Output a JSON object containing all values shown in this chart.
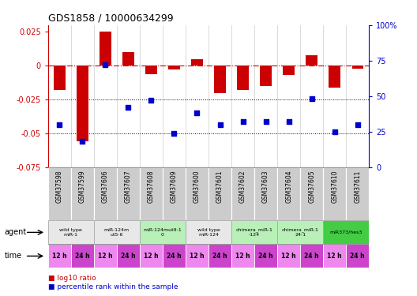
{
  "title": "GDS1858 / 10000634299",
  "samples": [
    "GSM37598",
    "GSM37599",
    "GSM37606",
    "GSM37607",
    "GSM37608",
    "GSM37609",
    "GSM37600",
    "GSM37601",
    "GSM37602",
    "GSM37603",
    "GSM37604",
    "GSM37605",
    "GSM37610",
    "GSM37611"
  ],
  "log10_ratio": [
    -0.018,
    -0.056,
    0.025,
    0.01,
    -0.006,
    -0.003,
    0.005,
    -0.02,
    -0.018,
    -0.015,
    -0.007,
    0.008,
    -0.016,
    -0.002
  ],
  "percentile_rank": [
    30,
    18,
    72,
    42,
    47,
    24,
    38,
    30,
    32,
    32,
    32,
    48,
    25,
    30
  ],
  "ylim_left": [
    -0.075,
    0.03
  ],
  "ylim_right": [
    0,
    100
  ],
  "yticks_left": [
    -0.075,
    -0.05,
    -0.025,
    0,
    0.025
  ],
  "ytick_labels_left": [
    "-0.075",
    "-0.05",
    "-0.025",
    "0",
    "0.025"
  ],
  "yticks_right": [
    0,
    25,
    50,
    75,
    100
  ],
  "ytick_labels_right": [
    "0",
    "25",
    "50",
    "75",
    "100%"
  ],
  "dotted_lines": [
    -0.025,
    -0.05
  ],
  "bar_color": "#cc0000",
  "dot_color": "#0000cc",
  "agent_groups": [
    {
      "label": "wild type\nmiR-1",
      "start": 0,
      "end": 2,
      "color": "#e8e8e8"
    },
    {
      "label": "miR-124m\nut5-6",
      "start": 2,
      "end": 4,
      "color": "#e8e8e8"
    },
    {
      "label": "miR-124mut9-1\n0",
      "start": 4,
      "end": 6,
      "color": "#b8f0b8"
    },
    {
      "label": "wild type\nmiR-124",
      "start": 6,
      "end": 8,
      "color": "#e8e8e8"
    },
    {
      "label": "chimera_miR-1\n-124",
      "start": 8,
      "end": 10,
      "color": "#b8f0b8"
    },
    {
      "label": "chimera_miR-1\n24-1",
      "start": 10,
      "end": 12,
      "color": "#b8f0b8"
    },
    {
      "label": "miR373/hes3",
      "start": 12,
      "end": 14,
      "color": "#44cc44"
    }
  ],
  "time_labels": [
    "12 h",
    "24 h",
    "12 h",
    "24 h",
    "12 h",
    "24 h",
    "12 h",
    "24 h",
    "12 h",
    "24 h",
    "12 h",
    "24 h",
    "12 h",
    "24 h"
  ],
  "time_color_12": "#ee88ee",
  "time_color_24": "#cc44cc",
  "legend_items": [
    {
      "label": "log10 ratio",
      "color": "#cc0000"
    },
    {
      "label": "percentile rank within the sample",
      "color": "#0000cc"
    }
  ],
  "bg_color": "#ffffff",
  "axis_color_left": "#cc0000",
  "axis_color_right": "#0000cc",
  "gsm_bg_color": "#cccccc"
}
